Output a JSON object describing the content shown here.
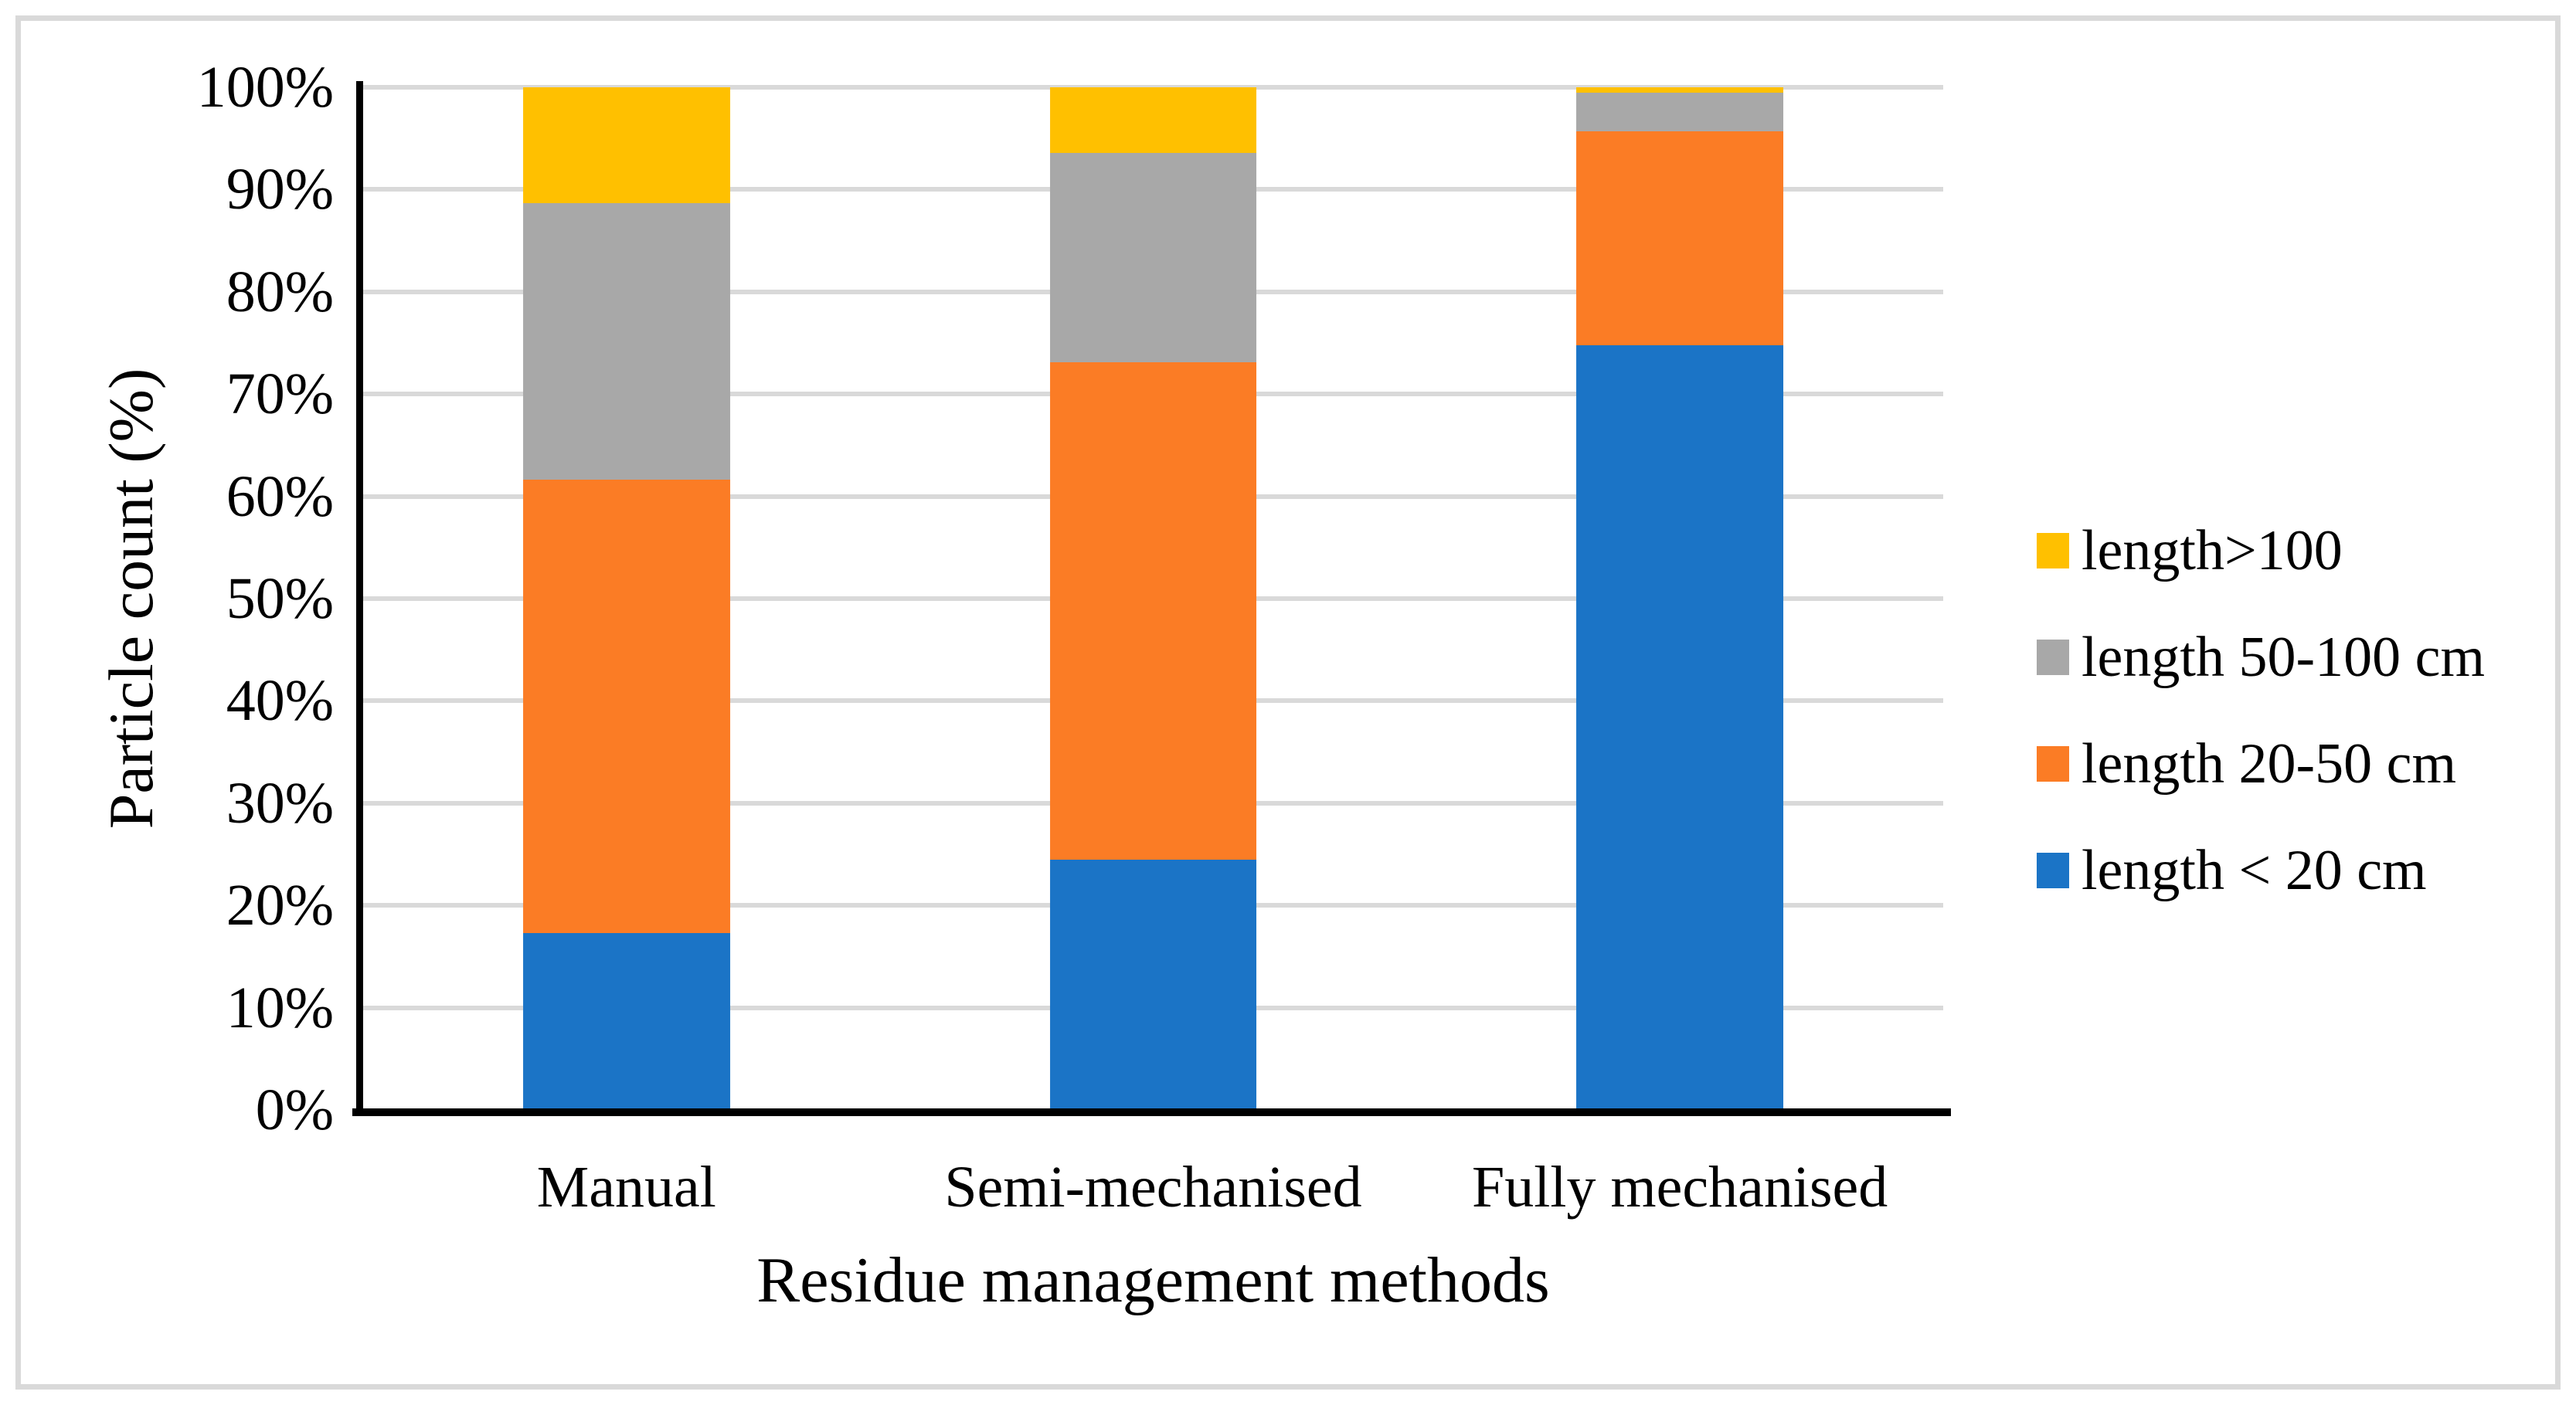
{
  "chart_data": {
    "type": "bar",
    "stacked": true,
    "stacking": "percent",
    "title": "",
    "xlabel": "Residue management methods",
    "ylabel": "Particle count (%)",
    "categories": [
      "Manual",
      "Semi-mechanised",
      "Fully mechanised"
    ],
    "series": [
      {
        "name": "length < 20 cm",
        "color": "#1b74c6",
        "values": [
          17.3,
          24.5,
          74.8
        ]
      },
      {
        "name": "length 20-50 cm",
        "color": "#fb7c25",
        "values": [
          44.3,
          48.6,
          20.9
        ]
      },
      {
        "name": "length 50-100 cm",
        "color": "#a8a8a8",
        "values": [
          27.1,
          20.5,
          3.8
        ]
      },
      {
        "name": "length>100",
        "color": "#ffc000",
        "values": [
          11.3,
          6.4,
          0.5
        ]
      }
    ],
    "legend_order_top_to_bottom": [
      "length>100",
      "length 50-100 cm",
      "length 20-50 cm",
      "length < 20 cm"
    ],
    "ylim": [
      0,
      100
    ],
    "ytick_step": 10,
    "ytick_labels": [
      "0%",
      "10%",
      "20%",
      "30%",
      "40%",
      "50%",
      "60%",
      "70%",
      "80%",
      "90%",
      "100%"
    ],
    "grid": "horizontal",
    "gridline_color": "#d9d9d9",
    "axis_color": "#000000",
    "figure_border_color": "#d9d9d9",
    "legend_position": "right"
  }
}
